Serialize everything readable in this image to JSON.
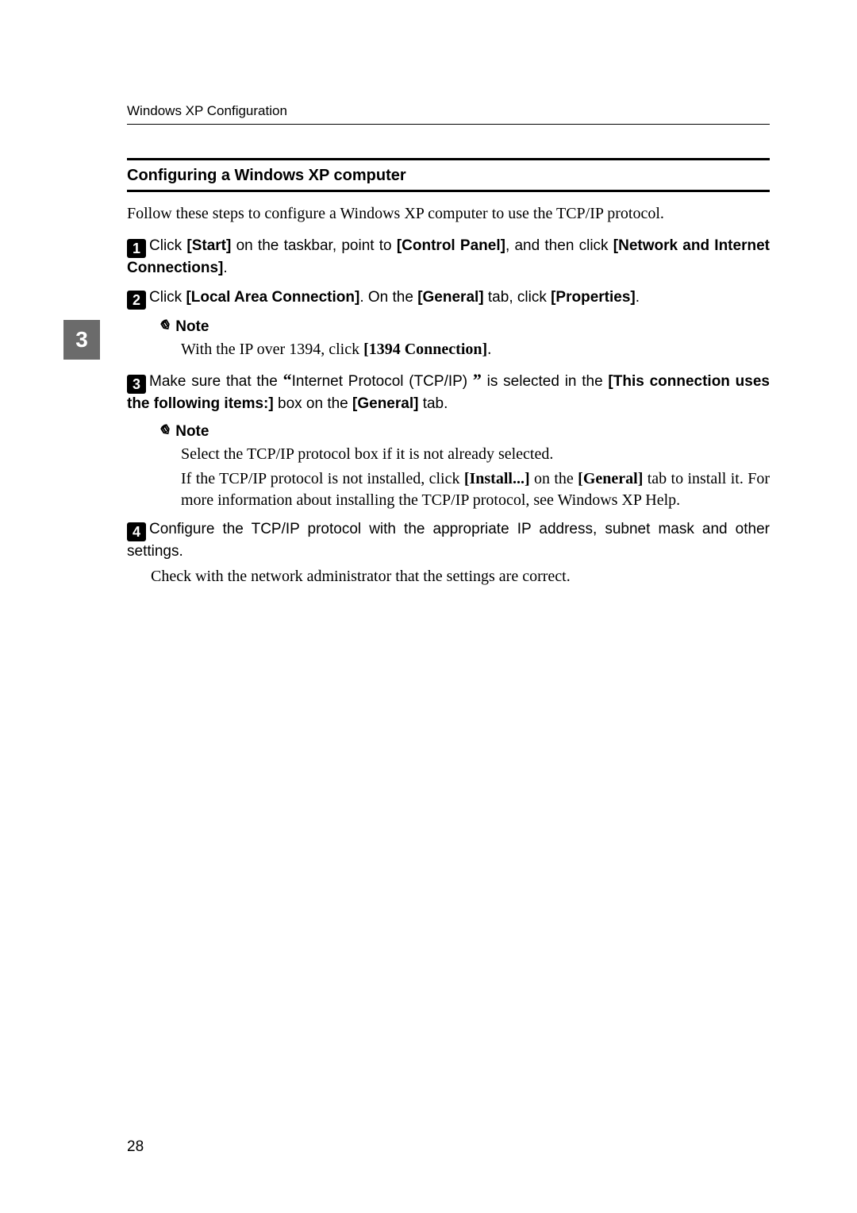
{
  "header": {
    "running": "Windows XP Configuration"
  },
  "sideTab": "3",
  "section": {
    "title": "Configuring a Windows XP computer",
    "intro": "Follow these steps to configure a Windows XP computer to use the TCP/IP protocol."
  },
  "steps": {
    "s1": {
      "num": "1",
      "pre": "Click ",
      "b1": "[Start]",
      "mid1": " on the taskbar, point to  ",
      "b2": "[Control Panel]",
      "mid2": ", and then click ",
      "b3": "[Network and Internet Connections]",
      "post": "."
    },
    "s2": {
      "num": "2",
      "pre": "Click ",
      "b1": "[Local Area Connection]",
      "mid1": ". On the ",
      "b2": "[General]",
      "mid2": " tab, click ",
      "b3": "[Properties]",
      "post": "."
    },
    "note1": {
      "label": "Note",
      "pre": "With the IP over 1394, click ",
      "b1": "[1394 Connection]",
      "post": "."
    },
    "s3": {
      "num": "3",
      "pre": "Make sure that the ",
      "q1": "“",
      "plain1": "Internet Protocol (TCP/IP) ",
      "q2": "”",
      "mid1": " is selected in the ",
      "b1": "[This connection uses the following items:]",
      "mid2": " box on the ",
      "b2": "[General]",
      "post": " tab."
    },
    "note2": {
      "label": "Note",
      "line1": "Select the TCP/IP protocol box if it is not already selected.",
      "l2pre": "If the TCP/IP protocol is not installed, click ",
      "l2b1": "[Install...]",
      "l2mid": " on the ",
      "l2b2": "[General]",
      "l2post": " tab to install it. For more information about installing the TCP/IP protocol, see Windows XP Help."
    },
    "s4": {
      "num": "4",
      "text": "Configure the TCP/IP protocol with the appropriate IP address, subnet mask and other settings.",
      "follow": "Check with the network administrator that the settings are correct."
    }
  },
  "pageNumber": "28"
}
